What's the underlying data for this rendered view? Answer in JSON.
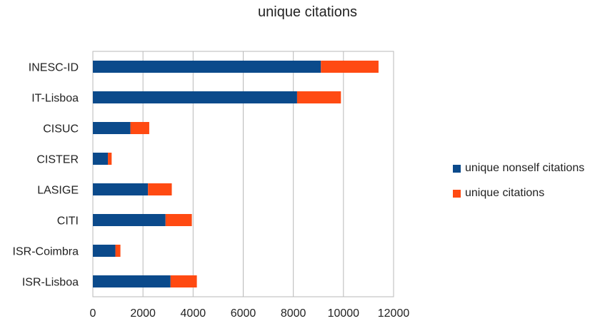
{
  "chart_data": {
    "type": "bar",
    "orientation": "horizontal",
    "stacked": true,
    "title": "unique citations",
    "categories": [
      "INESC-ID",
      "IT-Lisboa",
      "CISUC",
      "CISTER",
      "LASIGE",
      "CITI",
      "ISR-Coimbra",
      "ISR-Lisboa"
    ],
    "series": [
      {
        "name": "unique nonself citations",
        "color": "#0b4a8b",
        "values": [
          9100,
          8150,
          1500,
          600,
          2200,
          2900,
          900,
          3100
        ]
      },
      {
        "name": "unique citations",
        "color": "#ff4a12",
        "values": [
          2300,
          1750,
          750,
          150,
          950,
          1050,
          200,
          1050
        ]
      }
    ],
    "xlim": [
      0,
      12000
    ],
    "xticks": [
      "0",
      "2000",
      "4000",
      "6000",
      "8000",
      "10000",
      "12000"
    ],
    "grid": true,
    "legend_position": "right"
  }
}
